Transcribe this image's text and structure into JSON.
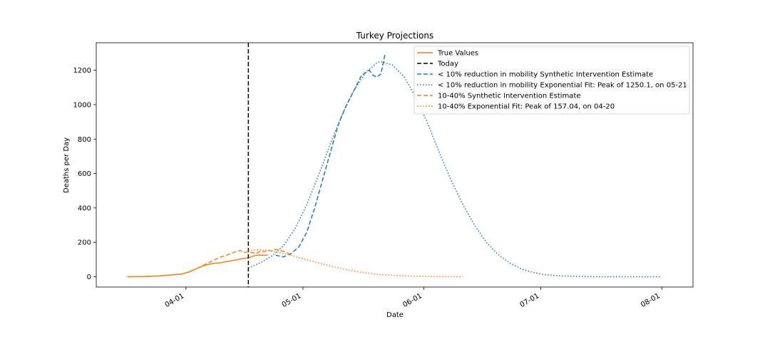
{
  "chart_data": {
    "type": "line",
    "title": "Turkey Projections",
    "xlabel": "Date",
    "ylabel": "Deaths per Day",
    "x_type": "date",
    "year": 2020,
    "xlim": [
      "2020-03-09",
      "2020-08-09"
    ],
    "ylim": [
      -60,
      1360
    ],
    "xticks": [
      {
        "label": "04-01",
        "value": "2020-04-01"
      },
      {
        "label": "05-01",
        "value": "2020-05-01"
      },
      {
        "label": "06-01",
        "value": "2020-06-01"
      },
      {
        "label": "07-01",
        "value": "2020-07-01"
      },
      {
        "label": "08-01",
        "value": "2020-08-01"
      }
    ],
    "yticks": [
      0,
      200,
      400,
      600,
      800,
      1000,
      1200
    ],
    "legend_position": "top-right",
    "today": "2020-04-17",
    "series": [
      {
        "name": "True Values",
        "color": "#ff7f0e",
        "dash": "solid",
        "points": [
          [
            "2020-03-17",
            0
          ],
          [
            "2020-03-21",
            1
          ],
          [
            "2020-03-25",
            4
          ],
          [
            "2020-03-28",
            10
          ],
          [
            "2020-03-31",
            16
          ],
          [
            "2020-04-02",
            30
          ],
          [
            "2020-04-04",
            50
          ],
          [
            "2020-04-06",
            68
          ],
          [
            "2020-04-08",
            77
          ],
          [
            "2020-04-10",
            82
          ],
          [
            "2020-04-12",
            90
          ],
          [
            "2020-04-14",
            98
          ],
          [
            "2020-04-15",
            103
          ],
          [
            "2020-04-17",
            110
          ],
          [
            "2020-04-19",
            125
          ],
          [
            "2020-04-22",
            125
          ]
        ]
      },
      {
        "name": "Today",
        "color": "#000000",
        "dash": "dashed",
        "vertical": "2020-04-17"
      },
      {
        "name": "< 10% reduction in mobility Synthetic Intervention Estimate",
        "color": "#1f77b4",
        "dash": "dashed",
        "points": [
          [
            "2020-04-24",
            125
          ],
          [
            "2020-04-26",
            115
          ],
          [
            "2020-04-28",
            135
          ],
          [
            "2020-04-30",
            175
          ],
          [
            "2020-05-02",
            260
          ],
          [
            "2020-05-04",
            400
          ],
          [
            "2020-05-06",
            560
          ],
          [
            "2020-05-08",
            720
          ],
          [
            "2020-05-10",
            880
          ],
          [
            "2020-05-12",
            990
          ],
          [
            "2020-05-14",
            1080
          ],
          [
            "2020-05-16",
            1170
          ],
          [
            "2020-05-18",
            1200
          ],
          [
            "2020-05-19",
            1170
          ],
          [
            "2020-05-20",
            1160
          ],
          [
            "2020-05-21",
            1180
          ],
          [
            "2020-05-22",
            1290
          ]
        ]
      },
      {
        "name": "< 10% reduction in mobility Exponential Fit: Peak of 1250.1, on 05-21",
        "color": "#1f77b4",
        "dash": "dotted",
        "points": [
          [
            "2020-04-17",
            50
          ],
          [
            "2020-04-20",
            80
          ],
          [
            "2020-04-23",
            120
          ],
          [
            "2020-04-26",
            180
          ],
          [
            "2020-04-29",
            280
          ],
          [
            "2020-05-02",
            420
          ],
          [
            "2020-05-05",
            590
          ],
          [
            "2020-05-08",
            770
          ],
          [
            "2020-05-11",
            940
          ],
          [
            "2020-05-14",
            1080
          ],
          [
            "2020-05-17",
            1185
          ],
          [
            "2020-05-20",
            1245
          ],
          [
            "2020-05-21",
            1250
          ],
          [
            "2020-05-24",
            1230
          ],
          [
            "2020-05-27",
            1160
          ],
          [
            "2020-05-30",
            1040
          ],
          [
            "2020-06-02",
            890
          ],
          [
            "2020-06-05",
            720
          ],
          [
            "2020-06-08",
            560
          ],
          [
            "2020-06-11",
            420
          ],
          [
            "2020-06-14",
            300
          ],
          [
            "2020-06-17",
            200
          ],
          [
            "2020-06-20",
            130
          ],
          [
            "2020-06-23",
            80
          ],
          [
            "2020-06-26",
            45
          ],
          [
            "2020-06-29",
            25
          ],
          [
            "2020-07-02",
            12
          ],
          [
            "2020-07-06",
            5
          ],
          [
            "2020-07-10",
            2
          ],
          [
            "2020-07-15",
            0
          ],
          [
            "2020-08-01",
            0
          ]
        ]
      },
      {
        "name": "10-40% Synthetic Intervention Estimate",
        "color": "#ff7f0e",
        "dash": "dashed",
        "points": [
          [
            "2020-03-17",
            0
          ],
          [
            "2020-03-21",
            1
          ],
          [
            "2020-03-25",
            4
          ],
          [
            "2020-03-28",
            10
          ],
          [
            "2020-03-31",
            16
          ],
          [
            "2020-04-02",
            30
          ],
          [
            "2020-04-04",
            50
          ],
          [
            "2020-04-06",
            72
          ],
          [
            "2020-04-08",
            95
          ],
          [
            "2020-04-10",
            115
          ],
          [
            "2020-04-11",
            120
          ],
          [
            "2020-04-12",
            130
          ],
          [
            "2020-04-14",
            148
          ],
          [
            "2020-04-15",
            152
          ],
          [
            "2020-04-16",
            140
          ],
          [
            "2020-04-17",
            145
          ],
          [
            "2020-04-19",
            135
          ],
          [
            "2020-04-20",
            148
          ],
          [
            "2020-04-21",
            145
          ],
          [
            "2020-04-22",
            155
          ],
          [
            "2020-04-23",
            150
          ],
          [
            "2020-04-24",
            160
          ],
          [
            "2020-04-26",
            148
          ],
          [
            "2020-04-27",
            140
          ],
          [
            "2020-04-28",
            120
          ]
        ]
      },
      {
        "name": "10-40% Exponential Fit: Peak of 157.04, on 04-20",
        "color": "#ff7f0e",
        "dash": "dotted",
        "points": [
          [
            "2020-04-17",
            150
          ],
          [
            "2020-04-20",
            157
          ],
          [
            "2020-04-23",
            150
          ],
          [
            "2020-04-27",
            130
          ],
          [
            "2020-05-01",
            105
          ],
          [
            "2020-05-05",
            80
          ],
          [
            "2020-05-09",
            57
          ],
          [
            "2020-05-13",
            37
          ],
          [
            "2020-05-17",
            22
          ],
          [
            "2020-05-21",
            12
          ],
          [
            "2020-05-25",
            7
          ],
          [
            "2020-05-30",
            3
          ],
          [
            "2020-06-05",
            1
          ],
          [
            "2020-06-11",
            0
          ]
        ]
      }
    ]
  }
}
